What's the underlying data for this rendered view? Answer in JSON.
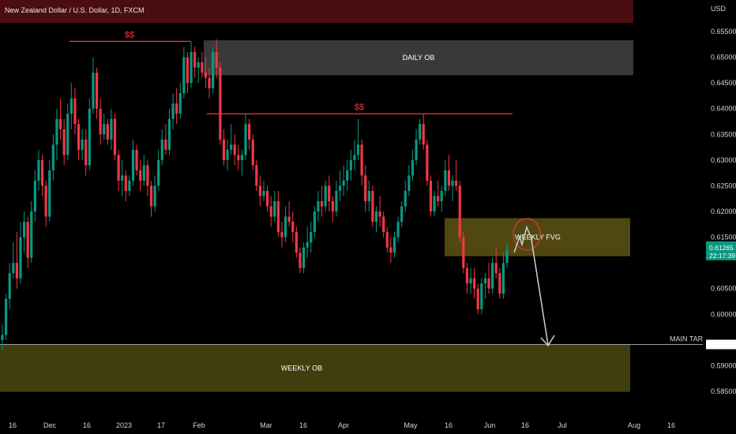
{
  "chart_data": {
    "type": "candlestick",
    "title": "New Zealand Dollar / U.S. Dollar, 1D, FXCM",
    "currency": "USD",
    "ylim": [
      0.5825,
      0.6582
    ],
    "y_ticks": [
      "0.65500",
      "0.65000",
      "0.64500",
      "0.64000",
      "0.63500",
      "0.63000",
      "0.62500",
      "0.62000",
      "0.61500",
      "0.60500",
      "0.60000",
      "0.59000",
      "0.58500"
    ],
    "x_ticks": [
      "16",
      "Dec",
      "16",
      "2023",
      "17",
      "Feb",
      "Mar",
      "16",
      "Apr",
      "May",
      "16",
      "Jun",
      "16",
      "Jul",
      "Aug",
      "16"
    ],
    "colors": {
      "bull": "#089981",
      "bear": "#f23645",
      "liquidity": "#f23645",
      "arrow": "#d0d0d0",
      "circle": "#e53935",
      "target_line": "#9e9e9e",
      "price_badge": "#089981",
      "ob_weekly": "#46400f",
      "fvg_weekly": "#5a4f12",
      "ob_daily": "#3c3c3c",
      "title_bar": "#4a0d10"
    },
    "current_price": {
      "price": "0.61265",
      "countdown": "22:17:39",
      "value": 0.61265
    },
    "main_target": {
      "label": "MAIN TARGET",
      "price": "0.59413",
      "value": 0.59413
    },
    "zones": [
      {
        "label": "DAILY OB",
        "top": 0.6533,
        "bottom": 0.6465
      },
      {
        "label": "WEEKLY FVG",
        "top": 0.6187,
        "bottom": 0.6113
      },
      {
        "label": "WEEKLY OB",
        "top": 0.5941,
        "bottom": 0.5849
      }
    ],
    "liquidity_levels": [
      {
        "label": "$$",
        "price": 0.6531
      },
      {
        "label": "$$",
        "price": 0.639
      }
    ],
    "candles": [
      [
        0.595,
        0.598,
        0.593,
        0.596
      ],
      [
        0.596,
        0.604,
        0.595,
        0.603
      ],
      [
        0.603,
        0.61,
        0.601,
        0.608
      ],
      [
        0.608,
        0.614,
        0.607,
        0.61
      ],
      [
        0.61,
        0.616,
        0.605,
        0.607
      ],
      [
        0.607,
        0.618,
        0.606,
        0.615
      ],
      [
        0.615,
        0.62,
        0.612,
        0.618
      ],
      [
        0.618,
        0.619,
        0.609,
        0.611
      ],
      [
        0.611,
        0.622,
        0.61,
        0.62
      ],
      [
        0.62,
        0.628,
        0.618,
        0.626
      ],
      [
        0.626,
        0.632,
        0.624,
        0.63
      ],
      [
        0.63,
        0.631,
        0.623,
        0.625
      ],
      [
        0.625,
        0.626,
        0.617,
        0.619
      ],
      [
        0.619,
        0.63,
        0.618,
        0.628
      ],
      [
        0.628,
        0.635,
        0.626,
        0.633
      ],
      [
        0.633,
        0.64,
        0.63,
        0.638
      ],
      [
        0.638,
        0.642,
        0.634,
        0.636
      ],
      [
        0.636,
        0.638,
        0.629,
        0.631
      ],
      [
        0.631,
        0.641,
        0.63,
        0.639
      ],
      [
        0.639,
        0.645,
        0.636,
        0.642
      ],
      [
        0.642,
        0.644,
        0.635,
        0.637
      ],
      [
        0.637,
        0.638,
        0.63,
        0.632
      ],
      [
        0.632,
        0.636,
        0.63,
        0.634
      ],
      [
        0.634,
        0.636,
        0.627,
        0.629
      ],
      [
        0.629,
        0.642,
        0.628,
        0.64
      ],
      [
        0.64,
        0.65,
        0.639,
        0.647
      ],
      [
        0.647,
        0.648,
        0.638,
        0.64
      ],
      [
        0.64,
        0.642,
        0.633,
        0.635
      ],
      [
        0.635,
        0.639,
        0.634,
        0.637
      ],
      [
        0.637,
        0.638,
        0.633,
        0.634
      ],
      [
        0.634,
        0.64,
        0.632,
        0.638
      ],
      [
        0.638,
        0.639,
        0.63,
        0.631
      ],
      [
        0.631,
        0.632,
        0.624,
        0.626
      ],
      [
        0.626,
        0.63,
        0.623,
        0.627
      ],
      [
        0.627,
        0.628,
        0.622,
        0.624
      ],
      [
        0.624,
        0.627,
        0.623,
        0.626
      ],
      [
        0.626,
        0.634,
        0.625,
        0.632
      ],
      [
        0.632,
        0.633,
        0.627,
        0.628
      ],
      [
        0.628,
        0.63,
        0.624,
        0.626
      ],
      [
        0.626,
        0.631,
        0.625,
        0.629
      ],
      [
        0.629,
        0.63,
        0.623,
        0.625
      ],
      [
        0.625,
        0.626,
        0.619,
        0.621
      ],
      [
        0.621,
        0.627,
        0.62,
        0.625
      ],
      [
        0.625,
        0.632,
        0.624,
        0.63
      ],
      [
        0.63,
        0.636,
        0.629,
        0.634
      ],
      [
        0.634,
        0.637,
        0.631,
        0.632
      ],
      [
        0.632,
        0.64,
        0.631,
        0.638
      ],
      [
        0.638,
        0.643,
        0.636,
        0.641
      ],
      [
        0.641,
        0.644,
        0.637,
        0.639
      ],
      [
        0.639,
        0.645,
        0.638,
        0.643
      ],
      [
        0.643,
        0.652,
        0.642,
        0.65
      ],
      [
        0.65,
        0.651,
        0.643,
        0.645
      ],
      [
        0.645,
        0.653,
        0.644,
        0.651
      ],
      [
        0.651,
        0.652,
        0.646,
        0.648
      ],
      [
        0.648,
        0.65,
        0.645,
        0.649
      ],
      [
        0.649,
        0.651,
        0.646,
        0.647
      ],
      [
        0.647,
        0.65,
        0.644,
        0.646
      ],
      [
        0.646,
        0.648,
        0.642,
        0.644
      ],
      [
        0.644,
        0.652,
        0.643,
        0.651
      ],
      [
        0.651,
        0.6535,
        0.646,
        0.648
      ],
      [
        0.648,
        0.649,
        0.633,
        0.634
      ],
      [
        0.634,
        0.636,
        0.629,
        0.63
      ],
      [
        0.63,
        0.634,
        0.628,
        0.632
      ],
      [
        0.632,
        0.637,
        0.631,
        0.633
      ],
      [
        0.633,
        0.635,
        0.629,
        0.631
      ],
      [
        0.631,
        0.633,
        0.628,
        0.63
      ],
      [
        0.63,
        0.632,
        0.627,
        0.631
      ],
      [
        0.631,
        0.639,
        0.63,
        0.637
      ],
      [
        0.637,
        0.638,
        0.632,
        0.634
      ],
      [
        0.634,
        0.635,
        0.628,
        0.629
      ],
      [
        0.629,
        0.63,
        0.624,
        0.625
      ],
      [
        0.625,
        0.627,
        0.621,
        0.623
      ],
      [
        0.623,
        0.626,
        0.622,
        0.624
      ],
      [
        0.624,
        0.625,
        0.62,
        0.621
      ],
      [
        0.621,
        0.623,
        0.617,
        0.619
      ],
      [
        0.619,
        0.624,
        0.618,
        0.622
      ],
      [
        0.622,
        0.624,
        0.615,
        0.616
      ],
      [
        0.616,
        0.618,
        0.613,
        0.615
      ],
      [
        0.615,
        0.621,
        0.614,
        0.619
      ],
      [
        0.619,
        0.622,
        0.617,
        0.618
      ],
      [
        0.618,
        0.62,
        0.614,
        0.616
      ],
      [
        0.616,
        0.617,
        0.611,
        0.612
      ],
      [
        0.612,
        0.613,
        0.608,
        0.609
      ],
      [
        0.609,
        0.614,
        0.608,
        0.613
      ],
      [
        0.613,
        0.617,
        0.611,
        0.614
      ],
      [
        0.614,
        0.618,
        0.612,
        0.616
      ],
      [
        0.616,
        0.621,
        0.615,
        0.62
      ],
      [
        0.62,
        0.624,
        0.618,
        0.622
      ],
      [
        0.622,
        0.625,
        0.619,
        0.621
      ],
      [
        0.621,
        0.626,
        0.62,
        0.625
      ],
      [
        0.625,
        0.627,
        0.62,
        0.622
      ],
      [
        0.622,
        0.623,
        0.618,
        0.62
      ],
      [
        0.62,
        0.626,
        0.619,
        0.624
      ],
      [
        0.624,
        0.628,
        0.622,
        0.625
      ],
      [
        0.625,
        0.629,
        0.623,
        0.626
      ],
      [
        0.626,
        0.63,
        0.624,
        0.628
      ],
      [
        0.628,
        0.632,
        0.626,
        0.63
      ],
      [
        0.63,
        0.634,
        0.628,
        0.631
      ],
      [
        0.631,
        0.638,
        0.63,
        0.633
      ],
      [
        0.633,
        0.634,
        0.625,
        0.627
      ],
      [
        0.627,
        0.629,
        0.62,
        0.622
      ],
      [
        0.622,
        0.626,
        0.62,
        0.624
      ],
      [
        0.624,
        0.625,
        0.617,
        0.618
      ],
      [
        0.618,
        0.621,
        0.616,
        0.62
      ],
      [
        0.62,
        0.623,
        0.617,
        0.619
      ],
      [
        0.619,
        0.62,
        0.615,
        0.616
      ],
      [
        0.616,
        0.617,
        0.612,
        0.613
      ],
      [
        0.613,
        0.615,
        0.61,
        0.612
      ],
      [
        0.612,
        0.616,
        0.611,
        0.615
      ],
      [
        0.615,
        0.619,
        0.614,
        0.618
      ],
      [
        0.618,
        0.622,
        0.617,
        0.621
      ],
      [
        0.621,
        0.626,
        0.62,
        0.624
      ],
      [
        0.624,
        0.629,
        0.623,
        0.627
      ],
      [
        0.627,
        0.632,
        0.626,
        0.63
      ],
      [
        0.63,
        0.636,
        0.629,
        0.634
      ],
      [
        0.634,
        0.638,
        0.633,
        0.637
      ],
      [
        0.637,
        0.639,
        0.632,
        0.633
      ],
      [
        0.633,
        0.634,
        0.625,
        0.626
      ],
      [
        0.626,
        0.627,
        0.619,
        0.62
      ],
      [
        0.62,
        0.624,
        0.619,
        0.623
      ],
      [
        0.623,
        0.626,
        0.621,
        0.622
      ],
      [
        0.622,
        0.625,
        0.62,
        0.624
      ],
      [
        0.624,
        0.63,
        0.623,
        0.628
      ],
      [
        0.628,
        0.631,
        0.624,
        0.625
      ],
      [
        0.625,
        0.627,
        0.622,
        0.626
      ],
      [
        0.626,
        0.63,
        0.624,
        0.625
      ],
      [
        0.625,
        0.626,
        0.614,
        0.615
      ],
      [
        0.615,
        0.616,
        0.608,
        0.609
      ],
      [
        0.609,
        0.61,
        0.604,
        0.606
      ],
      [
        0.606,
        0.609,
        0.604,
        0.607
      ],
      [
        0.607,
        0.609,
        0.603,
        0.605
      ],
      [
        0.605,
        0.606,
        0.6,
        0.601
      ],
      [
        0.601,
        0.607,
        0.6,
        0.606
      ],
      [
        0.606,
        0.608,
        0.603,
        0.607
      ],
      [
        0.607,
        0.61,
        0.604,
        0.605
      ],
      [
        0.605,
        0.611,
        0.604,
        0.61
      ],
      [
        0.61,
        0.613,
        0.607,
        0.608
      ],
      [
        0.608,
        0.609,
        0.603,
        0.604
      ],
      [
        0.604,
        0.612,
        0.603,
        0.61
      ],
      [
        0.61,
        0.614,
        0.609,
        0.6126
      ]
    ]
  }
}
